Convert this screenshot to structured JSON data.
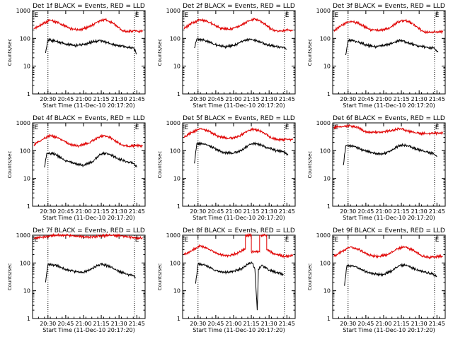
{
  "figure": {
    "start_time_label": "Start Time (11-Dec-10 20:17:20)",
    "ylabel": "Counts/sec",
    "tick_labels_x": [
      "20:30",
      "20:45",
      "21:00",
      "21:15",
      "21:30",
      "21:45"
    ],
    "tick_labels_y": [
      "1",
      "10",
      "100",
      "1000"
    ],
    "marker_letters": [
      "E",
      "E"
    ],
    "colors": {
      "events": "#000000",
      "lld": "#e00000",
      "vlines": "#000000"
    }
  },
  "chart_data": [
    {
      "type": "line",
      "title": "Det 1f BLACK = Events, RED = LLD",
      "xlabel": "Start Time (11-Dec-10 20:17:20)",
      "ylabel": "Counts/sec",
      "yscale": "log",
      "ylim": [
        1,
        1000
      ],
      "xlim": [
        "20:17",
        "21:52"
      ],
      "vlines": [
        "20:30",
        "21:43"
      ],
      "series": [
        {
          "name": "LLD",
          "x": [
            "20:18",
            "20:25",
            "20:32",
            "20:40",
            "20:48",
            "20:56",
            "21:05",
            "21:12",
            "21:18",
            "21:25",
            "21:32",
            "21:38",
            "21:42",
            "21:48",
            "21:50"
          ],
          "values": [
            220,
            330,
            450,
            350,
            230,
            200,
            260,
            400,
            480,
            350,
            200,
            170,
            190,
            180,
            180
          ]
        },
        {
          "name": "Events",
          "x": [
            "20:28",
            "20:30",
            "20:36",
            "20:44",
            "20:52",
            "21:00",
            "21:08",
            "21:14",
            "21:20",
            "21:28",
            "21:36",
            "21:42",
            "21:45"
          ],
          "values": [
            30,
            90,
            80,
            65,
            55,
            60,
            75,
            85,
            70,
            55,
            50,
            45,
            28
          ]
        }
      ]
    },
    {
      "type": "line",
      "title": "Det 2f BLACK = Events, RED = LLD",
      "xlabel": "Start Time (11-Dec-10 20:17:20)",
      "ylabel": "Counts/sec",
      "yscale": "log",
      "ylim": [
        1,
        1000
      ],
      "xlim": [
        "20:17",
        "21:52"
      ],
      "vlines": [
        "20:30",
        "21:43"
      ],
      "series": [
        {
          "name": "LLD",
          "x": [
            "20:18",
            "20:25",
            "20:32",
            "20:40",
            "20:48",
            "20:56",
            "21:05",
            "21:12",
            "21:18",
            "21:25",
            "21:32",
            "21:38",
            "21:44",
            "21:50"
          ],
          "values": [
            230,
            350,
            480,
            370,
            240,
            210,
            270,
            420,
            500,
            370,
            210,
            180,
            200,
            190
          ]
        },
        {
          "name": "Events",
          "x": [
            "20:27",
            "20:29",
            "20:36",
            "20:44",
            "20:52",
            "21:00",
            "21:08",
            "21:14",
            "21:20",
            "21:28",
            "21:36",
            "21:42",
            "21:45"
          ],
          "values": [
            45,
            95,
            85,
            60,
            50,
            55,
            80,
            95,
            80,
            60,
            50,
            48,
            40
          ]
        }
      ]
    },
    {
      "type": "line",
      "title": "Det 3f BLACK = Events, RED = LLD",
      "xlabel": "Start Time (11-Dec-10 20:17:20)",
      "ylabel": "Counts/sec",
      "yscale": "log",
      "ylim": [
        1,
        1000
      ],
      "xlim": [
        "20:17",
        "21:52"
      ],
      "vlines": [
        "20:30",
        "21:43"
      ],
      "series": [
        {
          "name": "LLD",
          "x": [
            "20:18",
            "20:25",
            "20:32",
            "20:40",
            "20:48",
            "20:56",
            "21:05",
            "21:12",
            "21:18",
            "21:25",
            "21:32",
            "21:38",
            "21:44",
            "21:50"
          ],
          "values": [
            190,
            300,
            420,
            330,
            210,
            190,
            240,
            380,
            450,
            330,
            190,
            160,
            170,
            170
          ]
        },
        {
          "name": "Events",
          "x": [
            "20:28",
            "20:30",
            "20:36",
            "20:44",
            "20:52",
            "21:00",
            "21:08",
            "21:14",
            "21:20",
            "21:28",
            "21:36",
            "21:42",
            "21:46"
          ],
          "values": [
            25,
            85,
            80,
            60,
            50,
            55,
            70,
            85,
            70,
            55,
            48,
            45,
            32
          ]
        }
      ]
    },
    {
      "type": "line",
      "title": "Det 4f BLACK = Events, RED = LLD",
      "xlabel": "Start Time (11-Dec-10 20:17:20)",
      "ylabel": "Counts/sec",
      "yscale": "log",
      "ylim": [
        1,
        1000
      ],
      "xlim": [
        "20:17",
        "21:52"
      ],
      "vlines": [
        "20:30",
        "21:43"
      ],
      "series": [
        {
          "name": "LLD",
          "x": [
            "20:18",
            "20:25",
            "20:32",
            "20:40",
            "20:48",
            "20:56",
            "21:05",
            "21:12",
            "21:18",
            "21:25",
            "21:32",
            "21:38",
            "21:44",
            "21:50"
          ],
          "values": [
            160,
            250,
            350,
            270,
            170,
            150,
            190,
            300,
            350,
            260,
            160,
            140,
            150,
            150
          ]
        },
        {
          "name": "Events",
          "x": [
            "20:27",
            "20:29",
            "20:36",
            "20:44",
            "20:52",
            "21:00",
            "21:08",
            "21:14",
            "21:20",
            "21:28",
            "21:36",
            "21:42",
            "21:45"
          ],
          "values": [
            25,
            80,
            75,
            45,
            35,
            30,
            40,
            75,
            80,
            55,
            40,
            35,
            25
          ]
        }
      ]
    },
    {
      "type": "line",
      "title": "Det 5f BLACK = Events, RED = LLD",
      "xlabel": "Start Time (11-Dec-10 20:17:20)",
      "ylabel": "Counts/sec",
      "yscale": "log",
      "ylim": [
        1,
        1000
      ],
      "xlim": [
        "20:17",
        "21:52"
      ],
      "vlines": [
        "20:30",
        "21:43"
      ],
      "series": [
        {
          "name": "LLD",
          "x": [
            "20:18",
            "20:25",
            "20:32",
            "20:40",
            "20:48",
            "20:56",
            "21:05",
            "21:12",
            "21:18",
            "21:25",
            "21:32",
            "21:38",
            "21:44",
            "21:50"
          ],
          "values": [
            300,
            450,
            620,
            480,
            320,
            270,
            330,
            520,
            600,
            450,
            280,
            240,
            260,
            250
          ]
        },
        {
          "name": "Events",
          "x": [
            "20:27",
            "20:29",
            "20:36",
            "20:44",
            "20:52",
            "21:00",
            "21:08",
            "21:14",
            "21:20",
            "21:28",
            "21:36",
            "21:42",
            "21:46"
          ],
          "values": [
            35,
            180,
            170,
            120,
            85,
            80,
            110,
            170,
            180,
            130,
            100,
            90,
            70
          ]
        }
      ]
    },
    {
      "type": "line",
      "title": "Det 6f BLACK = Events, RED = LLD",
      "xlabel": "Start Time (11-Dec-10 20:17:20)",
      "ylabel": "Counts/sec",
      "yscale": "log",
      "ylim": [
        1,
        1000
      ],
      "xlim": [
        "20:17",
        "21:52"
      ],
      "vlines": [
        "20:30",
        "21:43"
      ],
      "series": [
        {
          "name": "LLD",
          "x": [
            "20:18",
            "20:25",
            "20:32",
            "20:38",
            "20:44",
            "20:52",
            "21:00",
            "21:08",
            "21:14",
            "21:20",
            "21:28",
            "21:36",
            "21:42",
            "21:50"
          ],
          "values": [
            700,
            720,
            780,
            700,
            480,
            450,
            470,
            550,
            620,
            500,
            430,
            410,
            420,
            420
          ]
        },
        {
          "name": "Events",
          "x": [
            "20:26",
            "20:28",
            "20:36",
            "20:44",
            "20:52",
            "21:00",
            "21:08",
            "21:14",
            "21:20",
            "21:28",
            "21:36",
            "21:42",
            "21:45"
          ],
          "values": [
            30,
            150,
            140,
            100,
            80,
            75,
            110,
            160,
            150,
            110,
            90,
            80,
            60
          ]
        }
      ]
    },
    {
      "type": "line",
      "title": "Det 7f BLACK = Events, RED = LLD",
      "xlabel": "Start Time (11-Dec-10 20:17:20)",
      "ylabel": "Counts/sec",
      "yscale": "log",
      "ylim": [
        1,
        1000
      ],
      "xlim": [
        "20:17",
        "21:52"
      ],
      "vlines": [
        "20:30",
        "21:43"
      ],
      "series": [
        {
          "name": "LLD",
          "x": [
            "20:18",
            "20:25",
            "20:32",
            "20:40",
            "20:48",
            "20:56",
            "21:05",
            "21:12",
            "21:18",
            "21:25",
            "21:32",
            "21:38",
            "21:44",
            "21:50"
          ],
          "values": [
            750,
            850,
            950,
            1000,
            980,
            900,
            850,
            900,
            950,
            1000,
            950,
            850,
            780,
            800
          ]
        },
        {
          "name": "Events",
          "x": [
            "20:28",
            "20:30",
            "20:36",
            "20:44",
            "20:52",
            "21:00",
            "21:08",
            "21:14",
            "21:20",
            "21:28",
            "21:36",
            "21:42",
            "21:44"
          ],
          "values": [
            20,
            90,
            85,
            60,
            50,
            45,
            65,
            90,
            80,
            55,
            40,
            35,
            30
          ]
        }
      ]
    },
    {
      "type": "line",
      "title": "Det 8f BLACK = Events, RED = LLD",
      "xlabel": "Start Time (11-Dec-10 20:17:20)",
      "ylabel": "Counts/sec",
      "yscale": "log",
      "ylim": [
        1,
        1000
      ],
      "xlim": [
        "20:17",
        "21:52"
      ],
      "vlines": [
        "20:30",
        "21:43"
      ],
      "series": [
        {
          "name": "LLD",
          "x": [
            "20:18",
            "20:25",
            "20:32",
            "20:40",
            "20:48",
            "20:56",
            "21:04",
            "21:10",
            "21:10",
            "21:15",
            "21:15",
            "21:22",
            "21:22",
            "21:28",
            "21:28",
            "21:36",
            "21:44",
            "21:50"
          ],
          "values": [
            200,
            280,
            420,
            300,
            200,
            180,
            230,
            320,
            1000,
            1000,
            250,
            250,
            1000,
            1000,
            300,
            200,
            170,
            180
          ]
        },
        {
          "name": "Events",
          "x": [
            "20:28",
            "20:30",
            "20:36",
            "20:44",
            "20:52",
            "21:00",
            "21:08",
            "21:12",
            "21:16",
            "21:18",
            "21:20",
            "21:21",
            "21:24",
            "21:30",
            "21:36",
            "21:42"
          ],
          "values": [
            18,
            90,
            85,
            55,
            45,
            50,
            65,
            90,
            100,
            60,
            2,
            60,
            85,
            55,
            45,
            40
          ]
        }
      ]
    },
    {
      "type": "line",
      "title": "Det 9f BLACK = Events, RED = LLD",
      "xlabel": "Start Time (11-Dec-10 20:17:20)",
      "ylabel": "Counts/sec",
      "yscale": "log",
      "ylim": [
        1,
        1000
      ],
      "xlim": [
        "20:17",
        "21:52"
      ],
      "vlines": [
        "20:30",
        "21:43"
      ],
      "series": [
        {
          "name": "LLD",
          "x": [
            "20:18",
            "20:25",
            "20:32",
            "20:40",
            "20:48",
            "20:56",
            "21:05",
            "21:12",
            "21:18",
            "21:25",
            "21:32",
            "21:38",
            "21:44",
            "21:50"
          ],
          "values": [
            170,
            260,
            380,
            290,
            190,
            170,
            210,
            330,
            380,
            280,
            180,
            160,
            170,
            170
          ]
        },
        {
          "name": "Events",
          "x": [
            "20:27",
            "20:29",
            "20:36",
            "20:44",
            "20:52",
            "21:00",
            "21:08",
            "21:14",
            "21:20",
            "21:28",
            "21:36",
            "21:42",
            "21:45"
          ],
          "values": [
            15,
            80,
            75,
            50,
            40,
            38,
            55,
            85,
            80,
            55,
            45,
            40,
            32
          ]
        }
      ]
    }
  ]
}
